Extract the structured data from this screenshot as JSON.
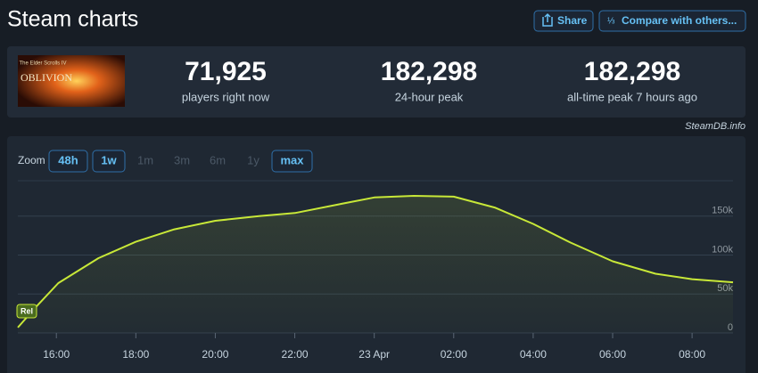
{
  "header": {
    "title": "Steam charts",
    "buttons": [
      "Share",
      "Compare with others..."
    ]
  },
  "game": {
    "series_name": "The Elder Scrolls IV",
    "title": "OBLIVION"
  },
  "stats": [
    {
      "value": "71,925",
      "label": "players right now"
    },
    {
      "value": "182,298",
      "label": "24-hour peak"
    },
    {
      "value": "182,298",
      "label": "all-time peak 7 hours ago"
    }
  ],
  "source": "SteamDB.info",
  "zoom": {
    "label": "Zoom",
    "options": [
      {
        "label": "48h",
        "active": true
      },
      {
        "label": "1w",
        "active": true
      },
      {
        "label": "1m",
        "active": false
      },
      {
        "label": "3m",
        "active": false
      },
      {
        "label": "6m",
        "active": false
      },
      {
        "label": "1y",
        "active": false
      },
      {
        "label": "max",
        "active": true
      }
    ]
  },
  "chart_data": {
    "type": "line",
    "color": "#c8e838",
    "annotation": "Rel",
    "x": [
      15.03,
      15.48,
      16.05,
      17.06,
      18,
      18.97,
      20,
      21.1,
      22,
      23.1,
      24,
      25,
      26,
      27.03,
      28,
      28.94,
      30,
      31.08,
      32,
      33.03
    ],
    "values": [
      7000,
      33000,
      64000,
      96000,
      117000,
      133000,
      144000,
      150000,
      154000,
      165000,
      174000,
      176000,
      175000,
      161000,
      140000,
      116000,
      92000,
      76000,
      69000,
      65000
    ],
    "xlim": [
      15.03,
      33.03
    ],
    "xticks": [
      {
        "value": 16,
        "label": "16:00"
      },
      {
        "value": 18,
        "label": "18:00"
      },
      {
        "value": 20,
        "label": "20:00"
      },
      {
        "value": 22,
        "label": "22:00"
      },
      {
        "value": 24,
        "label": "23 Apr"
      },
      {
        "value": 26,
        "label": "02:00"
      },
      {
        "value": 28,
        "label": "04:00"
      },
      {
        "value": 30,
        "label": "06:00"
      },
      {
        "value": 32,
        "label": "08:00"
      }
    ],
    "ylim": [
      0,
      200000
    ],
    "yticks": [
      0,
      {
        "value": 50000,
        "label": "50k"
      },
      {
        "value": 100000,
        "label": "100k"
      },
      {
        "value": 150000,
        "label": "150k"
      }
    ],
    "grid": true
  }
}
